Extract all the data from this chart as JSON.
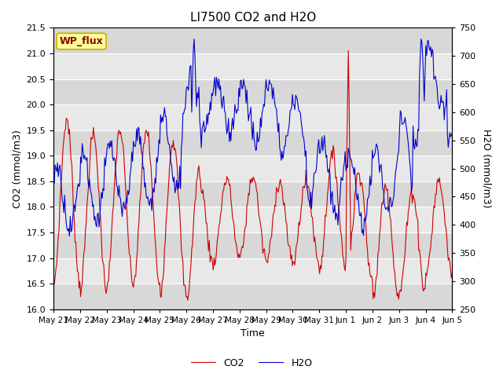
{
  "title": "LI7500 CO2 and H2O",
  "xlabel": "Time",
  "ylabel_left": "CO2 (mmol/m3)",
  "ylabel_right": "H2O (mmol/m3)",
  "annotation": "WP_flux",
  "co2_ylim": [
    16.0,
    21.5
  ],
  "h2o_ylim": [
    250,
    750
  ],
  "co2_color": "#cc0000",
  "h2o_color": "#0000cc",
  "background_color": "#ffffff",
  "plot_bg_color": "#e8e8e8",
  "grid_color": "#ffffff",
  "xtick_labels": [
    "May 21",
    "May 22",
    "May 23",
    "May 24",
    "May 25",
    "May 26",
    "May 27",
    "May 28",
    "May 29",
    "May 30",
    "May 31",
    "Jun 1",
    "Jun 2",
    "Jun 3",
    "Jun 4",
    "Jun 5"
  ],
  "n_points": 500,
  "figsize": [
    6.4,
    4.8
  ],
  "dpi": 100
}
